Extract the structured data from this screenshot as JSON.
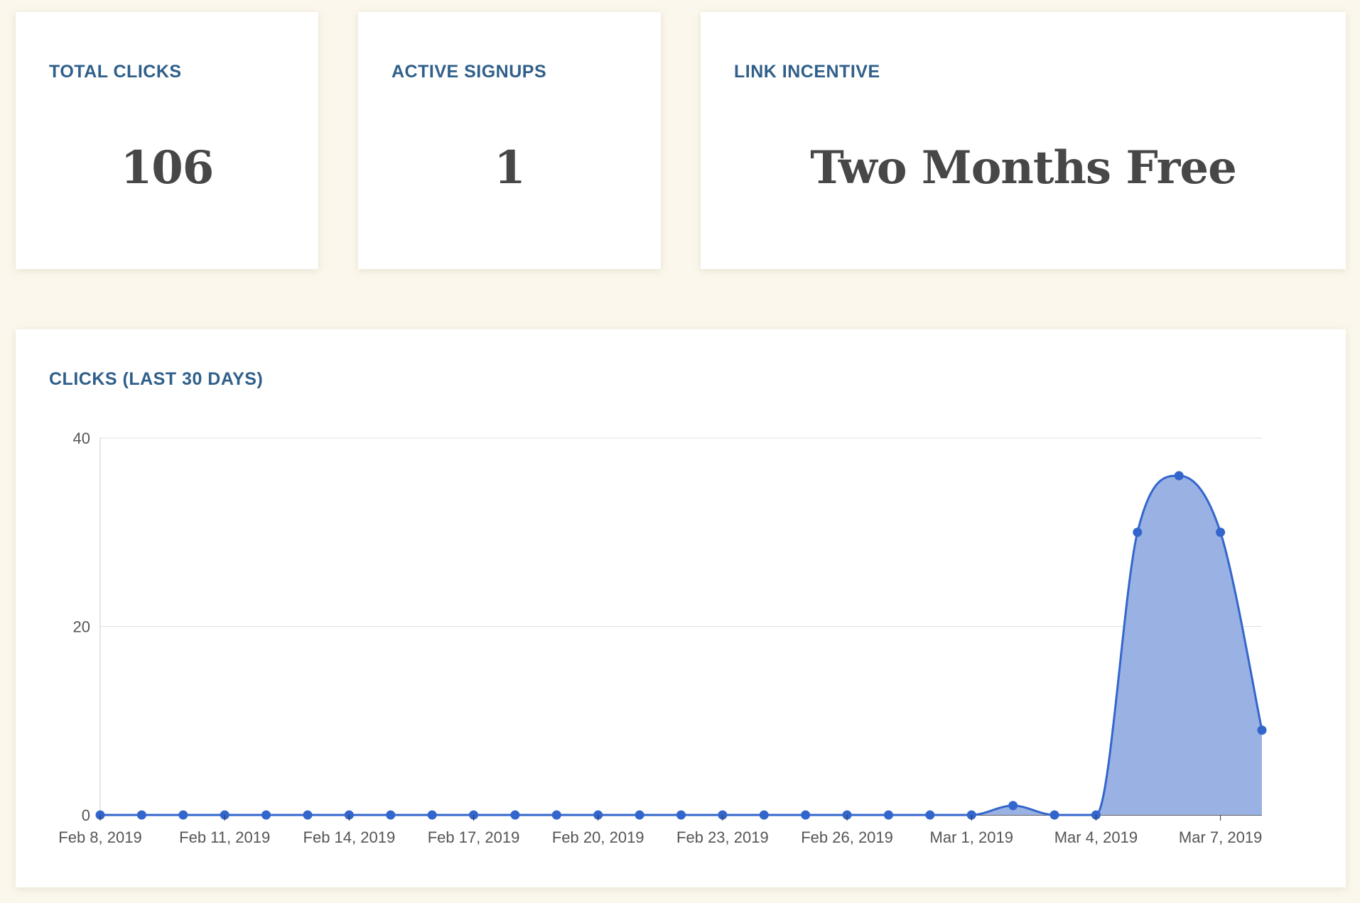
{
  "stats": {
    "total_clicks": {
      "label": "TOTAL CLICKS",
      "value": "106"
    },
    "active_signups": {
      "label": "ACTIVE SIGNUPS",
      "value": "1"
    },
    "link_incentive": {
      "label": "LINK INCENTIVE",
      "value": "Two Months Free"
    }
  },
  "colors": {
    "page_background": "#fbf7ec",
    "card_title": "#2f5f8a",
    "stat_value": "#474747",
    "series_line": "#3366cc",
    "series_fill": "#99b1e3",
    "gridline": "#e0e0e0"
  },
  "chart_data": {
    "type": "area",
    "title": "CLICKS (LAST 30 DAYS)",
    "xlabel": "",
    "ylabel": "",
    "x": [
      "2019-02-08",
      "2019-02-09",
      "2019-02-10",
      "2019-02-11",
      "2019-02-12",
      "2019-02-13",
      "2019-02-14",
      "2019-02-15",
      "2019-02-16",
      "2019-02-17",
      "2019-02-18",
      "2019-02-19",
      "2019-02-20",
      "2019-02-21",
      "2019-02-22",
      "2019-02-23",
      "2019-02-24",
      "2019-02-25",
      "2019-02-26",
      "2019-02-27",
      "2019-02-28",
      "2019-03-01",
      "2019-03-02",
      "2019-03-03",
      "2019-03-04",
      "2019-03-05",
      "2019-03-06",
      "2019-03-07",
      "2019-03-08"
    ],
    "series": [
      {
        "values": [
          0,
          0,
          0,
          0,
          0,
          0,
          0,
          0,
          0,
          0,
          0,
          0,
          0,
          0,
          0,
          0,
          0,
          0,
          0,
          0,
          0,
          0,
          1,
          0,
          0,
          30,
          36,
          30,
          9
        ]
      }
    ],
    "ylim": [
      0,
      40
    ],
    "yticks": [
      "0",
      "20",
      "40"
    ],
    "xtick_labels": [
      "Feb 8, 2019",
      "Feb 11, 2019",
      "Feb 14, 2019",
      "Feb 17, 2019",
      "Feb 20, 2019",
      "Feb 23, 2019",
      "Feb 26, 2019",
      "Mar 1, 2019",
      "Mar 4, 2019",
      "Mar 7, 2019"
    ],
    "xtick_every": 3,
    "grid": true,
    "legend": "none",
    "smooth": true
  }
}
